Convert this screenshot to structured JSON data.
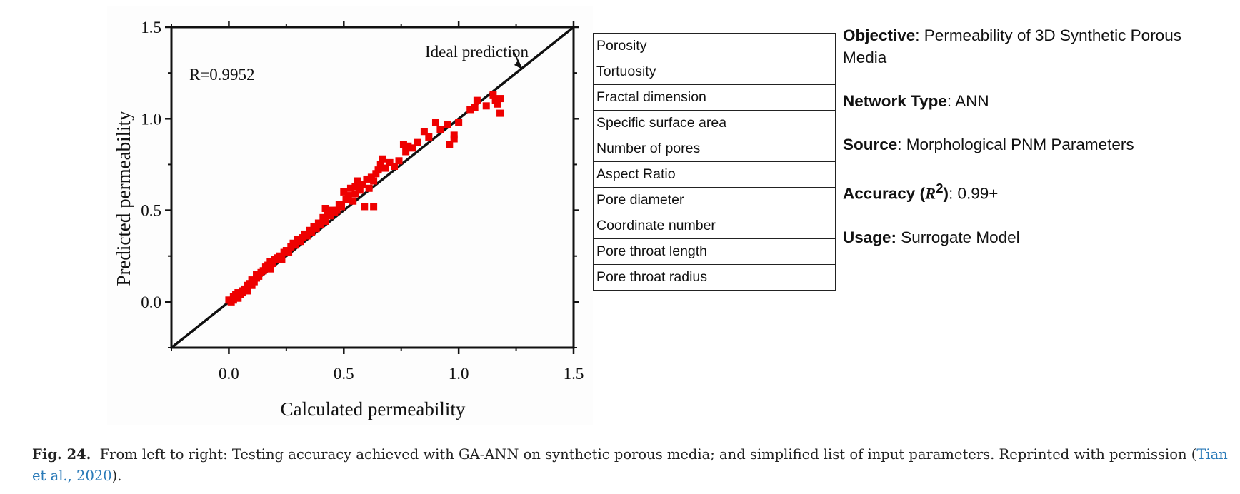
{
  "chart_data": {
    "type": "scatter",
    "xlabel": "Calculated permeability",
    "ylabel": "Predicted permeability",
    "xlim": [
      -0.25,
      1.5
    ],
    "ylim": [
      -0.25,
      1.5
    ],
    "xticks": [
      "0.0",
      "0.5",
      "1.0",
      "1.5"
    ],
    "yticks": [
      "0.0",
      "0.5",
      "1.0",
      "1.5"
    ],
    "r_label": "R=0.9952",
    "reference_line_label": "Ideal prediction",
    "marker_color": "#ee0000",
    "series": [
      {
        "x": [
          0.0,
          0.01,
          0.02,
          0.02,
          0.03,
          0.04,
          0.04,
          0.05,
          0.06,
          0.06,
          0.07,
          0.08,
          0.08,
          0.09,
          0.1,
          0.1,
          0.11,
          0.12,
          0.12,
          0.13,
          0.14,
          0.15,
          0.16,
          0.17,
          0.18,
          0.18,
          0.19,
          0.2,
          0.21,
          0.22,
          0.23,
          0.24,
          0.25,
          0.26,
          0.27,
          0.28,
          0.29,
          0.3,
          0.31,
          0.32,
          0.33,
          0.34,
          0.35,
          0.36,
          0.37,
          0.38,
          0.39,
          0.4,
          0.41,
          0.42,
          0.42,
          0.43,
          0.44,
          0.45,
          0.46,
          0.47,
          0.48,
          0.49,
          0.5,
          0.51,
          0.52,
          0.53,
          0.54,
          0.55,
          0.55,
          0.56,
          0.57,
          0.58,
          0.59,
          0.6,
          0.61,
          0.62,
          0.63,
          0.64,
          0.65,
          0.66,
          0.67,
          0.68,
          0.7,
          0.72,
          0.74,
          0.76,
          0.77,
          0.78,
          0.8,
          0.82,
          0.85,
          0.87,
          0.9,
          0.92,
          0.95,
          0.96,
          0.98,
          1.0,
          1.05,
          1.07,
          1.08,
          1.12,
          1.15,
          1.16,
          1.17,
          1.18,
          1.18,
          0.98,
          0.63
        ],
        "y": [
          0.01,
          0.0,
          0.03,
          0.01,
          0.04,
          0.02,
          0.05,
          0.04,
          0.06,
          0.05,
          0.07,
          0.09,
          0.06,
          0.1,
          0.09,
          0.12,
          0.11,
          0.13,
          0.15,
          0.14,
          0.16,
          0.17,
          0.19,
          0.2,
          0.22,
          0.18,
          0.21,
          0.23,
          0.24,
          0.25,
          0.23,
          0.27,
          0.28,
          0.27,
          0.3,
          0.32,
          0.31,
          0.34,
          0.33,
          0.35,
          0.37,
          0.36,
          0.39,
          0.38,
          0.41,
          0.4,
          0.43,
          0.42,
          0.46,
          0.51,
          0.44,
          0.48,
          0.47,
          0.5,
          0.49,
          0.5,
          0.53,
          0.52,
          0.6,
          0.56,
          0.58,
          0.62,
          0.55,
          0.59,
          0.63,
          0.66,
          0.61,
          0.64,
          0.52,
          0.67,
          0.62,
          0.68,
          0.66,
          0.7,
          0.72,
          0.75,
          0.78,
          0.73,
          0.76,
          0.74,
          0.77,
          0.86,
          0.82,
          0.85,
          0.84,
          0.87,
          0.93,
          0.9,
          0.98,
          0.94,
          0.97,
          0.86,
          0.89,
          0.98,
          1.05,
          1.06,
          1.1,
          1.07,
          1.13,
          1.1,
          1.08,
          1.11,
          1.03,
          0.91,
          0.52
        ]
      }
    ]
  },
  "parameters": [
    "Porosity",
    "Tortuosity",
    "Fractal dimension",
    "Specific surface area",
    "Number of pores",
    "Aspect Ratio",
    "Pore diameter",
    "Coordinate number",
    "Pore throat length",
    "Pore throat radius"
  ],
  "info": {
    "objective_label": "Objective",
    "objective_value": ": Permeability of 3D Synthetic Porous Media",
    "network_label": "Network Type",
    "network_value": ": ANN",
    "source_label": "Source",
    "source_value": ": Morphological PNM Parameters",
    "accuracy_label": "Accuracy (",
    "accuracy_symbol": "R",
    "accuracy_exp": "2",
    "accuracy_close": ")",
    "accuracy_value": ": 0.99+",
    "usage_label": "Usage:",
    "usage_value": " Surrogate Model"
  },
  "caption": {
    "label": "Fig. 24.",
    "text": "From left to right: Testing accuracy achieved with GA-ANN on synthetic porous media; and simplified list of input parameters. Reprinted with permission (",
    "citation": "Tian et al., 2020",
    "end": ")."
  }
}
